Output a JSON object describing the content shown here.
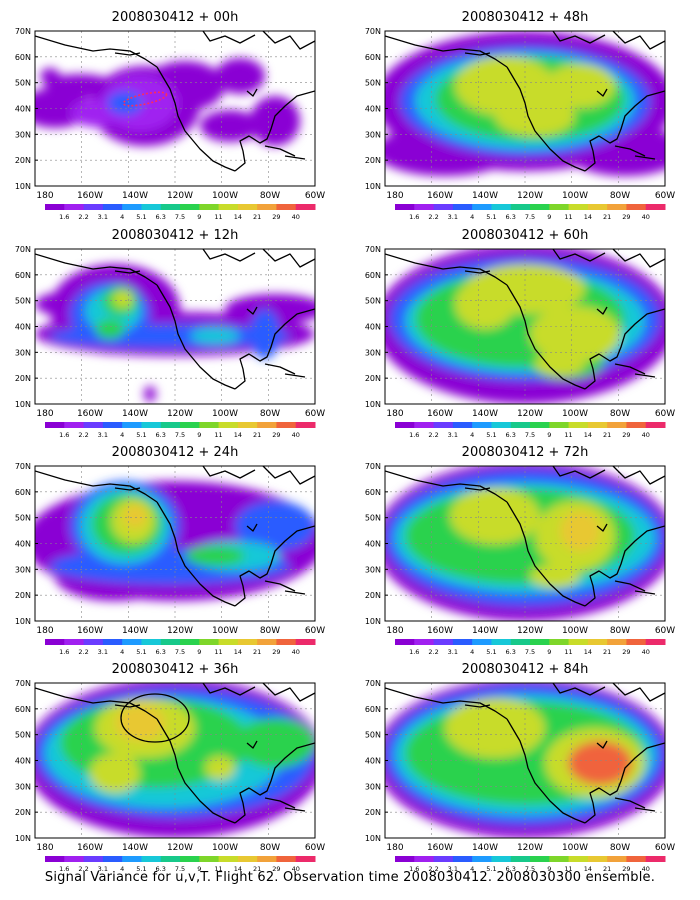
{
  "figure": {
    "footer": "Signal Variance for u,v,T. Flight 62. Observation time 2008030412. 2008030300 ensemble.",
    "y_tick_labels": [
      "70N",
      "60N",
      "50N",
      "40N",
      "30N",
      "20N",
      "10N"
    ],
    "x_tick_labels": [
      "180",
      "160W",
      "140W",
      "120W",
      "100W",
      "80W",
      "60W"
    ],
    "colorbar": {
      "labels": [
        "1.6",
        "2.2",
        "3.1",
        "4",
        "5.1",
        "6.3",
        "7.5",
        "9",
        "11",
        "14",
        "21",
        "29",
        "40"
      ],
      "colors": [
        "#8a00d4",
        "#a020f0",
        "#6a3cff",
        "#2a5cff",
        "#1e9bff",
        "#17c8d8",
        "#17c98a",
        "#2ad24e",
        "#7ed62a",
        "#c8dc2a",
        "#e8c832",
        "#f2a23a",
        "#f0643c",
        "#ec2a6a"
      ]
    },
    "panels": [
      {
        "title": "2008030412 + 00h"
      },
      {
        "title": "2008030412 + 48h"
      },
      {
        "title": "2008030412 + 12h"
      },
      {
        "title": "2008030412 + 60h"
      },
      {
        "title": "2008030412 + 24h"
      },
      {
        "title": "2008030412 + 72h"
      },
      {
        "title": "2008030412 + 36h"
      },
      {
        "title": "2008030412 + 84h"
      }
    ]
  }
}
